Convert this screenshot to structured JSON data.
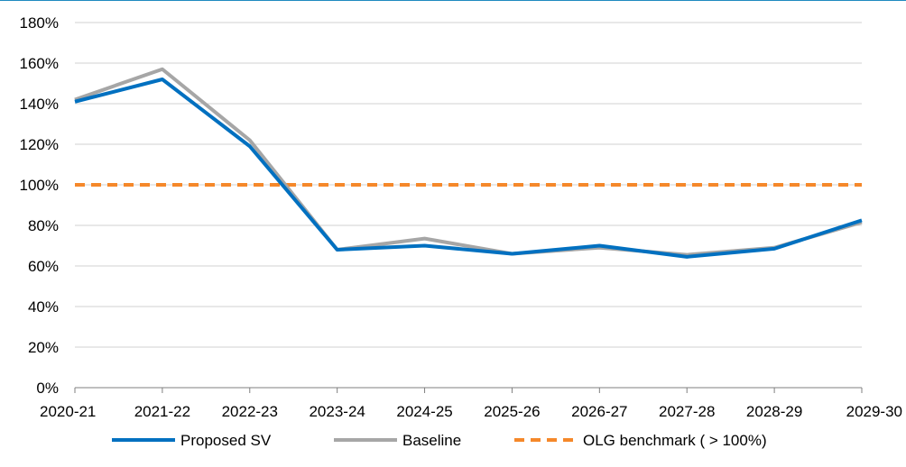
{
  "chart_data": {
    "type": "line",
    "categories": [
      "2020-21",
      "2021-22",
      "2022-23",
      "2023-24",
      "2024-25",
      "2025-26",
      "2026-27",
      "2027-28",
      "2028-29",
      "2029-30"
    ],
    "series": [
      {
        "name": "Proposed SV",
        "color": "#0070c0",
        "values": [
          141,
          152,
          119,
          68,
          70,
          66,
          70,
          64.5,
          68.5,
          82.5
        ]
      },
      {
        "name": "Baseline",
        "color": "#a6a6a6",
        "values": [
          142,
          157,
          122,
          68,
          73.5,
          66,
          69,
          65.5,
          69,
          81.5
        ]
      },
      {
        "name": "OLG benchmark ( > 100%)",
        "color": "#f5882a",
        "dashed": true,
        "values": [
          100,
          100,
          100,
          100,
          100,
          100,
          100,
          100,
          100,
          100
        ]
      }
    ],
    "y_ticks": [
      "0%",
      "20%",
      "40%",
      "60%",
      "80%",
      "100%",
      "120%",
      "140%",
      "160%",
      "180%"
    ],
    "ylim": [
      0,
      180
    ],
    "ystep": 20,
    "grid": true,
    "legend_position": "bottom",
    "title": "",
    "xlabel": "",
    "ylabel": ""
  }
}
